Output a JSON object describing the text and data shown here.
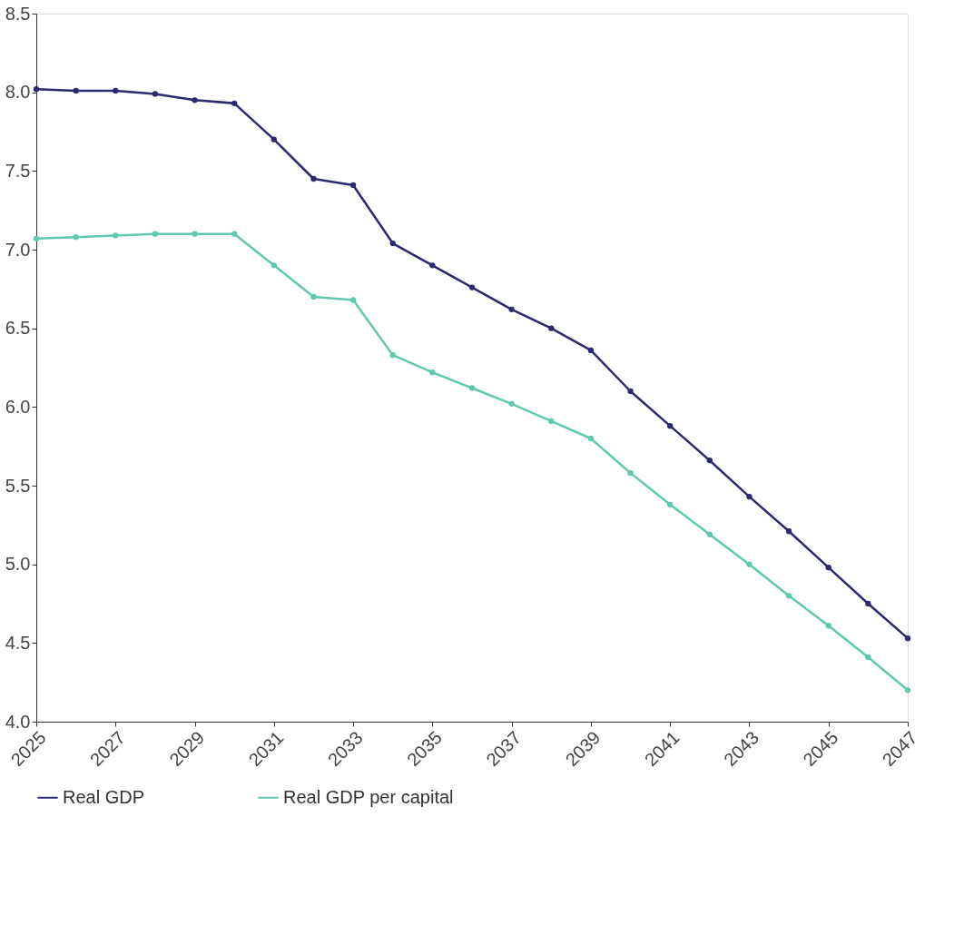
{
  "chart_data": {
    "type": "line",
    "x": [
      2025,
      2026,
      2027,
      2028,
      2029,
      2030,
      2031,
      2032,
      2033,
      2034,
      2035,
      2036,
      2037,
      2038,
      2039,
      2040,
      2041,
      2042,
      2043,
      2044,
      2045,
      2046,
      2047
    ],
    "series": [
      {
        "name": "Real GDP",
        "color": "#2b2a6e",
        "values": [
          8.02,
          8.01,
          8.01,
          7.99,
          7.95,
          7.93,
          7.7,
          7.45,
          7.41,
          7.04,
          6.9,
          6.76,
          6.62,
          6.5,
          6.36,
          6.1,
          5.88,
          5.66,
          5.43,
          5.21,
          4.98,
          4.75,
          4.53
        ]
      },
      {
        "name": "Real GDP per capital",
        "color": "#5fc9b0",
        "values": [
          7.07,
          7.08,
          7.09,
          7.1,
          7.1,
          7.1,
          6.9,
          6.7,
          6.68,
          6.33,
          6.22,
          6.12,
          6.02,
          5.91,
          5.8,
          5.58,
          5.38,
          5.19,
          5.0,
          4.8,
          4.61,
          4.41,
          4.2
        ]
      }
    ],
    "xlim": [
      2025,
      2047
    ],
    "xticks": [
      2025,
      2027,
      2029,
      2031,
      2033,
      2035,
      2037,
      2039,
      2041,
      2043,
      2045,
      2047
    ],
    "ylim": [
      4.0,
      8.5
    ],
    "yticks": [
      {
        "value": 4.0,
        "label": "4.0"
      },
      {
        "value": 4.5,
        "label": "4.5"
      },
      {
        "value": 5.0,
        "label": "5.0"
      },
      {
        "value": 5.5,
        "label": "5.5"
      },
      {
        "value": 6.0,
        "label": "6.0"
      },
      {
        "value": 6.5,
        "label": "6.5"
      },
      {
        "value": 7.0,
        "label": "7.0"
      },
      {
        "value": 7.5,
        "label": "7.5"
      },
      {
        "value": 8.0,
        "label": "8.0"
      },
      {
        "value": 8.5,
        "label": "8.5"
      }
    ],
    "grid": false,
    "legend": "bottom",
    "marker": "circle",
    "line_style": "solid"
  }
}
